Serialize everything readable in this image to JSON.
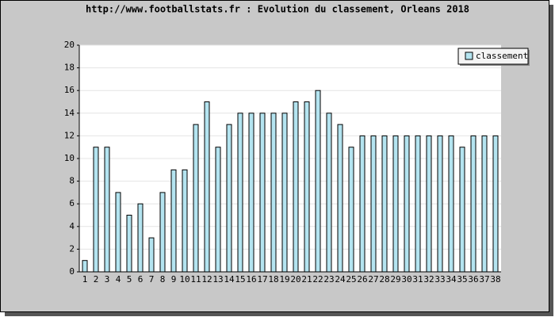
{
  "chart_data": {
    "type": "bar",
    "title": "http://www.footballstats.fr : Evolution du classement, Orleans 2018",
    "categories": [
      "1",
      "2",
      "3",
      "4",
      "5",
      "6",
      "7",
      "8",
      "9",
      "10",
      "11",
      "12",
      "13",
      "14",
      "15",
      "16",
      "17",
      "18",
      "19",
      "20",
      "21",
      "22",
      "23",
      "24",
      "25",
      "26",
      "27",
      "28",
      "29",
      "30",
      "31",
      "32",
      "33",
      "34",
      "35",
      "36",
      "37",
      "38"
    ],
    "series": [
      {
        "name": "classement",
        "color": "#b4e4f0",
        "values": [
          1,
          11,
          11,
          7,
          5,
          6,
          3,
          7,
          9,
          9,
          13,
          15,
          11,
          13,
          14,
          14,
          14,
          14,
          14,
          15,
          15,
          16,
          14,
          13,
          11,
          12,
          12,
          12,
          12,
          12,
          12,
          12,
          12,
          12,
          11,
          12,
          12,
          12
        ]
      }
    ],
    "ylim": [
      0,
      20
    ],
    "yticks": [
      0,
      2,
      4,
      6,
      8,
      10,
      12,
      14,
      16,
      18,
      20
    ],
    "grid": true,
    "legend": "top-right"
  }
}
